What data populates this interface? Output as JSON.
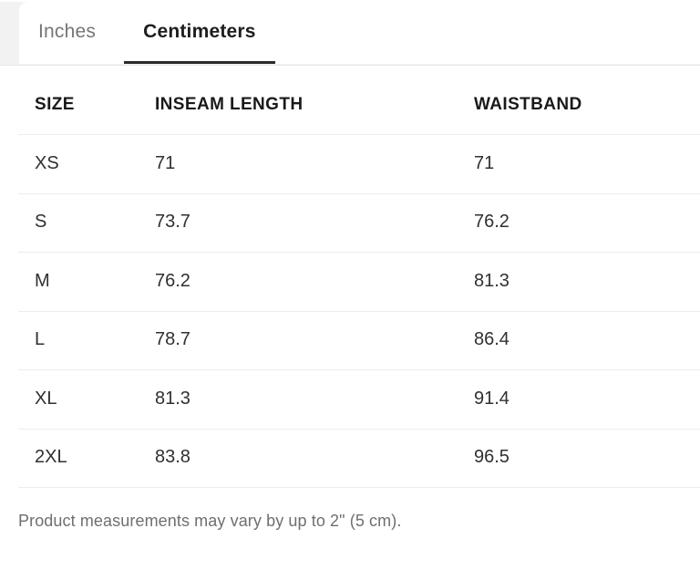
{
  "tabs": {
    "inches_label": "Inches",
    "centimeters_label": "Centimeters",
    "active_tab": "Centimeters"
  },
  "table": {
    "headers": [
      "SIZE",
      "INSEAM LENGTH",
      "WAISTBAND"
    ],
    "rows": [
      {
        "size": "XS",
        "inseam": "71",
        "waistband": "71"
      },
      {
        "size": "S",
        "inseam": "73.7",
        "waistband": "76.2"
      },
      {
        "size": "M",
        "inseam": "76.2",
        "waistband": "81.3"
      },
      {
        "size": "L",
        "inseam": "78.7",
        "waistband": "86.4"
      },
      {
        "size": "XL",
        "inseam": "81.3",
        "waistband": "91.4"
      },
      {
        "size": "2XL",
        "inseam": "83.8",
        "waistband": "96.5"
      }
    ]
  },
  "footer": {
    "note": "Product measurements may vary by up to 2\" (5 cm)."
  },
  "colors": {
    "active_tab_text": "#1d1d1d",
    "active_tab_underline": "#2b2b2b",
    "inactive_tab_text": "#767676",
    "header_text": "#1a1a1a",
    "cell_text": "#303030",
    "footer_text": "#6f6f6f",
    "divider": "#ececec",
    "page_edge_gray": "#f2f2f2"
  }
}
